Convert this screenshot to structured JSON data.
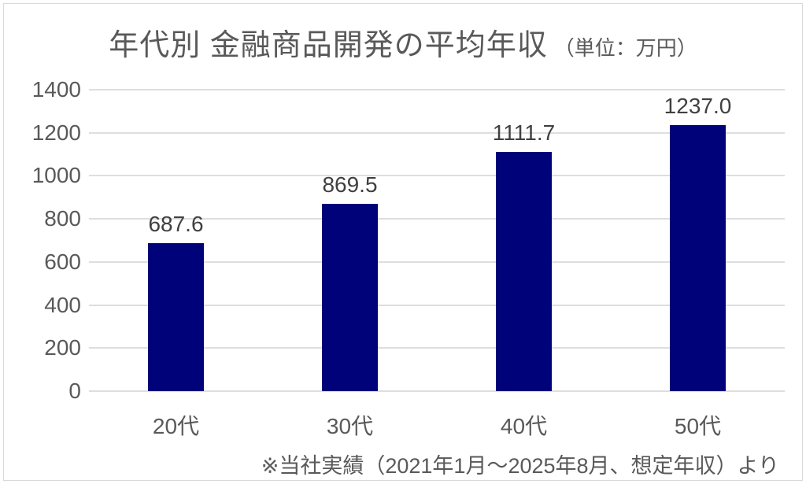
{
  "title": {
    "main": "年代別 金融商品開発の平均年収",
    "unit": "（単位：万円）"
  },
  "footer": {
    "note": "※当社実績（2021年1月～2025年8月、想定年収）より"
  },
  "chart_data": {
    "type": "bar",
    "categories": [
      "20代",
      "30代",
      "40代",
      "50代"
    ],
    "values": [
      687.6,
      869.5,
      1111.7,
      1237.0
    ],
    "value_labels": [
      "687.6",
      "869.5",
      "1111.7",
      "1237.0"
    ],
    "title": "年代別 金融商品開発の平均年収（単位：万円）",
    "xlabel": "",
    "ylabel": "",
    "ylim": [
      0,
      1400
    ],
    "yticks": [
      0,
      200,
      400,
      600,
      800,
      1000,
      1200,
      1400
    ],
    "grid": true,
    "legend": false,
    "source_note": "※当社実績（2021年1月～2025年8月、想定年収）より",
    "colors": {
      "bar": "#00027A",
      "gridline": "#DEDEDE",
      "axis_text": "#595959",
      "data_label_text": "#404040",
      "frame_border": "#D9D9D9",
      "background": "#FFFFFF"
    }
  }
}
